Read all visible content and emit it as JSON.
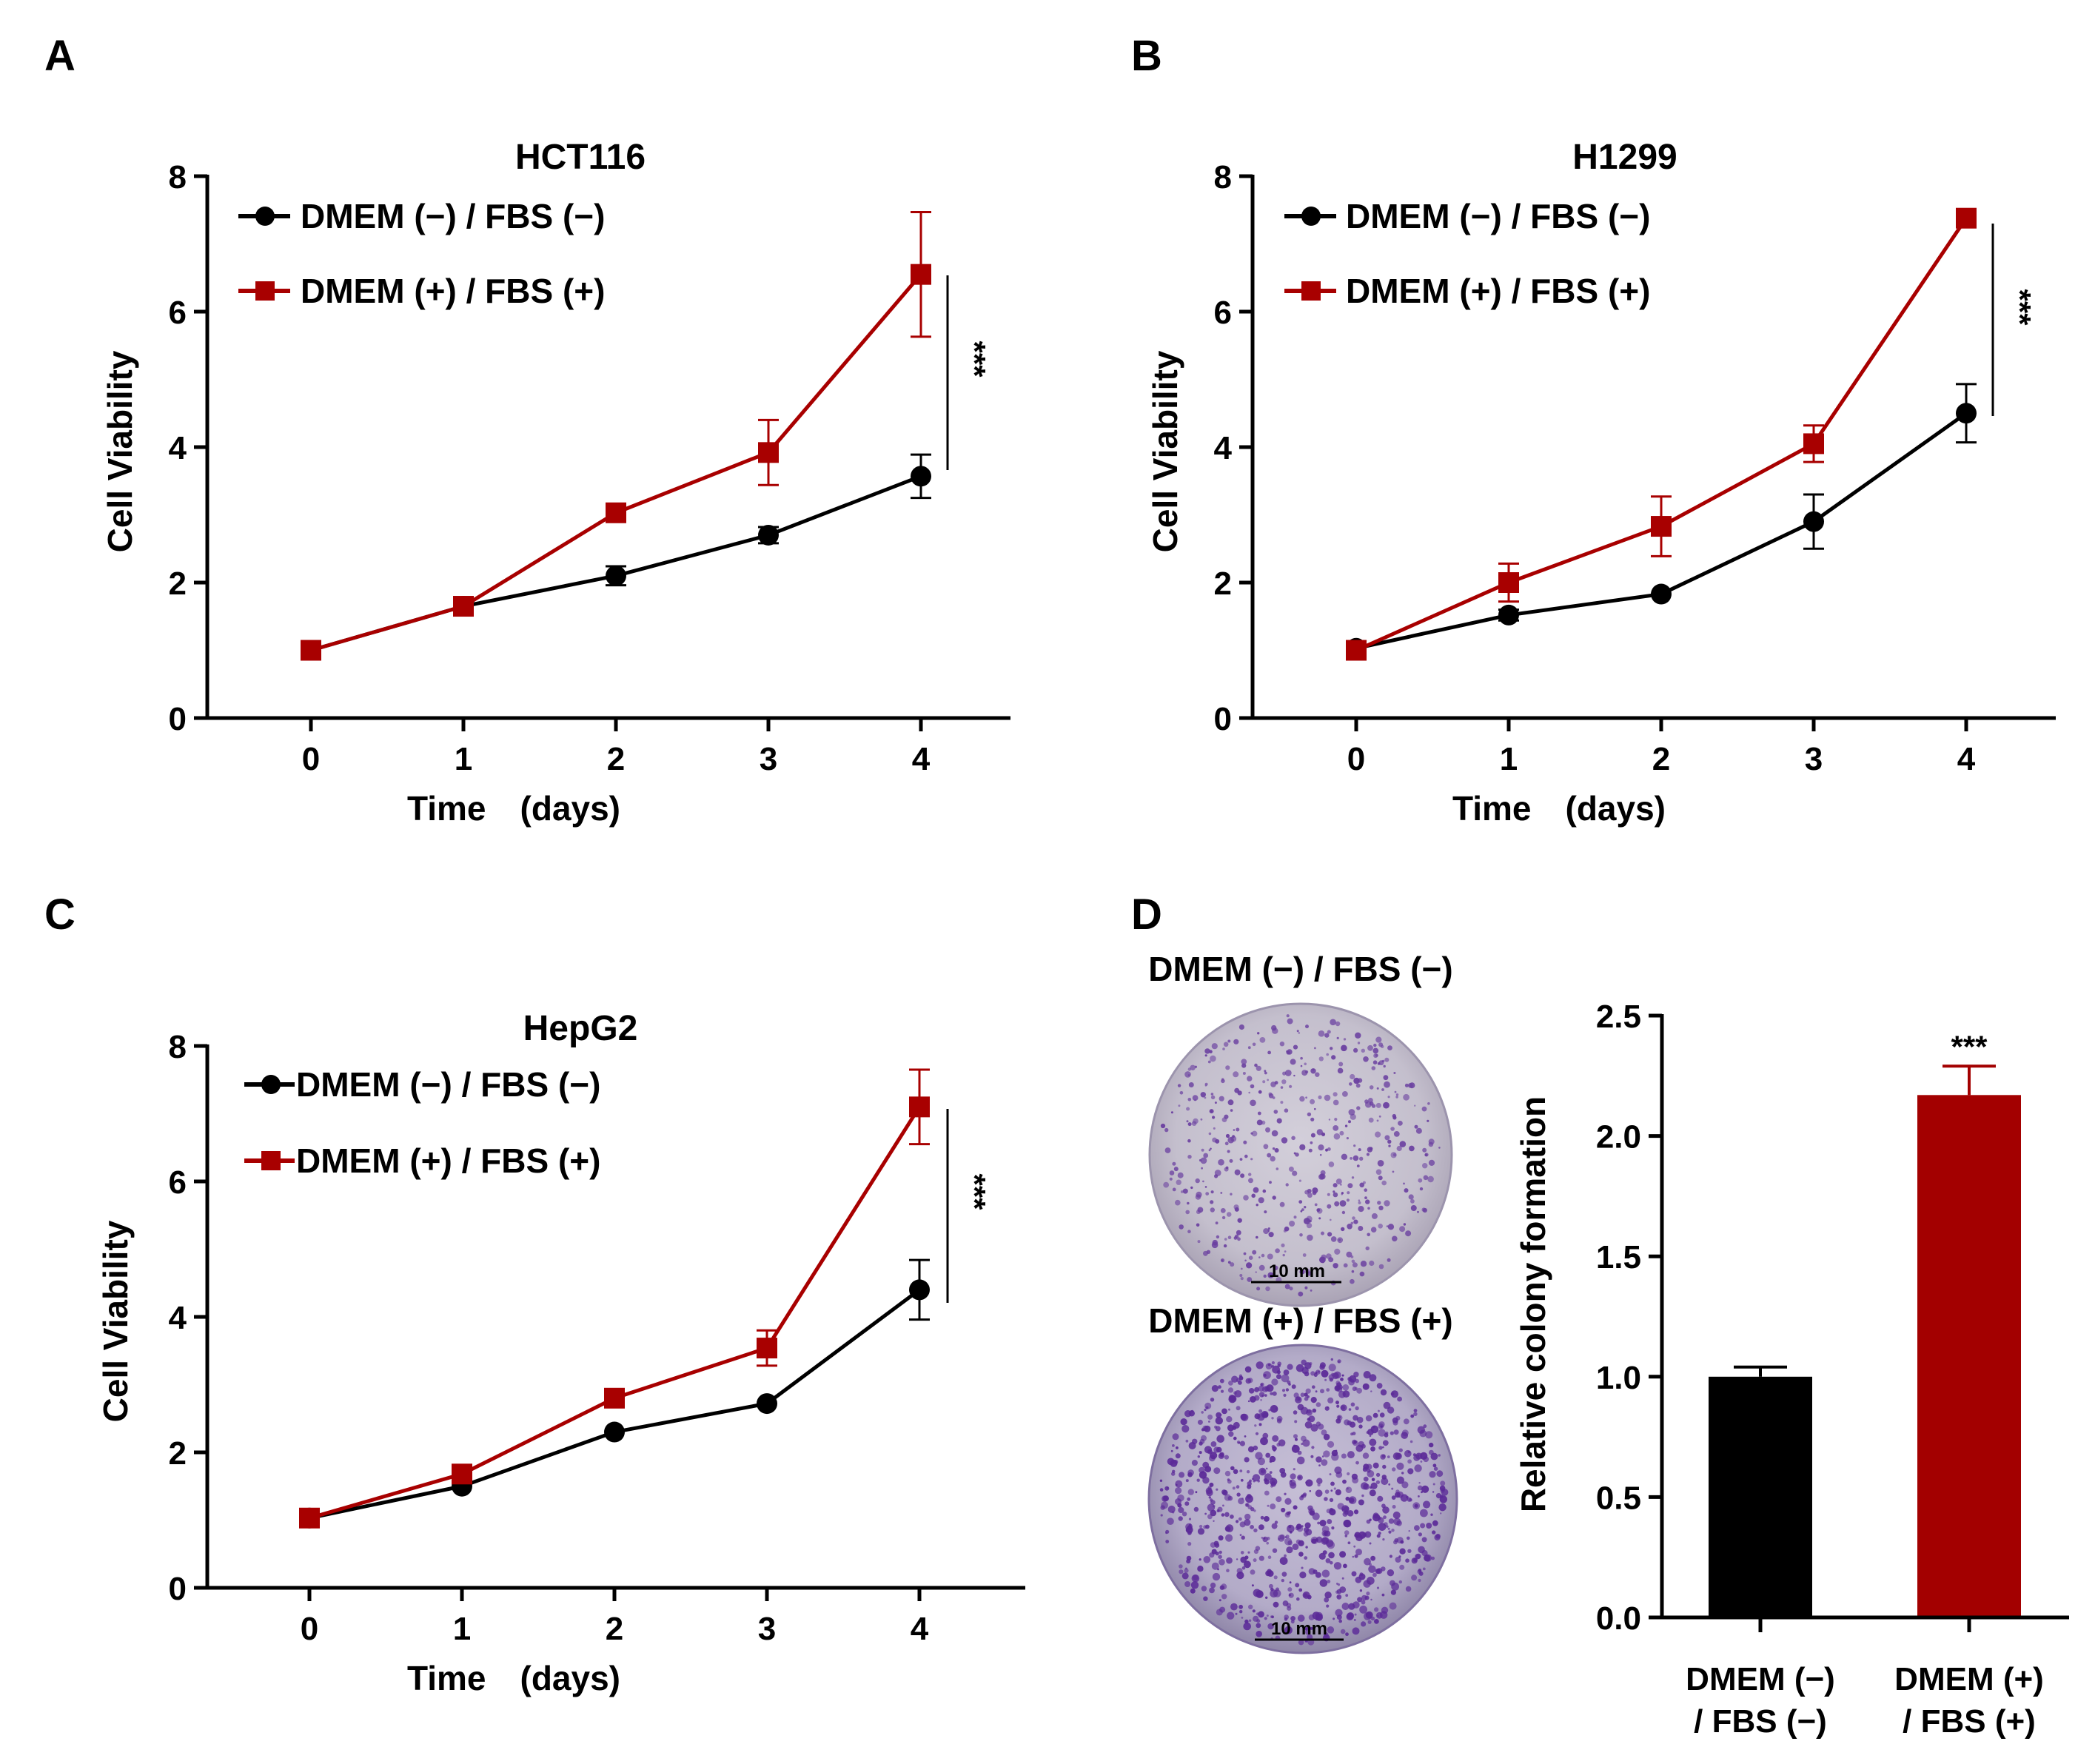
{
  "colors": {
    "black_series": "#000000",
    "red_series": "#A80000",
    "bar_black": "#000000",
    "bar_red": "#A30000"
  },
  "chart_data": [
    {
      "panel_label": "A",
      "type": "line",
      "title": "HCT116",
      "xlabel": "Time　(days)",
      "ylabel": "Cell  Viability",
      "x": [
        0,
        1,
        2,
        3,
        4
      ],
      "ylim": [
        0,
        8
      ],
      "yticks": [
        0,
        2,
        4,
        6,
        8
      ],
      "series": [
        {
          "name": "DMEM (−) / FBS (−)",
          "marker": "circle",
          "color": "#000000",
          "values": [
            1.0,
            1.65,
            2.1,
            2.7,
            3.57
          ],
          "errors": [
            0.06,
            0.06,
            0.14,
            0.12,
            0.32
          ]
        },
        {
          "name": "DMEM (+) / FBS (+)",
          "marker": "square",
          "color": "#A80000",
          "values": [
            1.0,
            1.65,
            3.03,
            3.92,
            6.55
          ],
          "errors": [
            0.06,
            0.06,
            0.12,
            0.48,
            0.92
          ]
        }
      ],
      "significance": "***",
      "legend_position": "top-left"
    },
    {
      "panel_label": "B",
      "type": "line",
      "title": "H1299",
      "xlabel": "Time　(days)",
      "ylabel": "Cell  Viability",
      "x": [
        0,
        1,
        2,
        3,
        4
      ],
      "ylim": [
        0,
        8
      ],
      "yticks": [
        0,
        2,
        4,
        6,
        8
      ],
      "series": [
        {
          "name": "DMEM (−) / FBS (−)",
          "marker": "circle",
          "color": "#000000",
          "values": [
            1.03,
            1.52,
            1.83,
            2.9,
            4.5
          ],
          "errors": [
            0.05,
            0.08,
            0.06,
            0.4,
            0.43
          ]
        },
        {
          "name": "DMEM (+) / FBS (+)",
          "marker": "square",
          "color": "#A80000",
          "values": [
            1.0,
            2.0,
            2.83,
            4.05,
            7.38
          ],
          "errors": [
            0.05,
            0.28,
            0.44,
            0.27,
            0.05
          ]
        }
      ],
      "significance": "***",
      "legend_position": "top-left"
    },
    {
      "panel_label": "C",
      "type": "line",
      "title": "HepG2",
      "xlabel": "Time　(days)",
      "ylabel": "Cell  Viability",
      "x": [
        0,
        1,
        2,
        3,
        4
      ],
      "ylim": [
        0,
        8
      ],
      "yticks": [
        0,
        2,
        4,
        6,
        8
      ],
      "series": [
        {
          "name": "DMEM (−) / FBS (−)",
          "marker": "circle",
          "color": "#000000",
          "values": [
            1.03,
            1.5,
            2.3,
            2.72,
            4.4
          ],
          "errors": [
            0.05,
            0.05,
            0.06,
            0.07,
            0.44
          ]
        },
        {
          "name": "DMEM (+) / FBS (+)",
          "marker": "square",
          "color": "#A80000",
          "values": [
            1.03,
            1.68,
            2.8,
            3.54,
            7.1
          ],
          "errors": [
            0.05,
            0.06,
            0.07,
            0.26,
            0.55
          ]
        }
      ],
      "significance": "***",
      "legend_position": "top-left"
    },
    {
      "panel_label": "D",
      "type": "bar",
      "title": "",
      "xlabel": "",
      "ylabel": "Relative colony formation",
      "ylim": [
        0,
        2.5
      ],
      "yticks": [
        "0.0",
        "0.5",
        "1.0",
        "1.5",
        "2.0",
        "2.5"
      ],
      "categories": [
        [
          "DMEM (−)",
          "/ FBS (−)"
        ],
        [
          "DMEM (+)",
          "/ FBS (+)"
        ]
      ],
      "values": [
        1.0,
        2.17
      ],
      "errors": [
        0.04,
        0.12
      ],
      "bar_colors": [
        "#000000",
        "#A30000"
      ],
      "significance": [
        "",
        "***"
      ],
      "images": [
        {
          "caption": "DMEM (−) / FBS (−)",
          "scale_bar": "10 mm",
          "stain_density": "medium"
        },
        {
          "caption": "DMEM (+) / FBS (+)",
          "scale_bar": "10 mm",
          "stain_density": "high"
        }
      ]
    }
  ]
}
